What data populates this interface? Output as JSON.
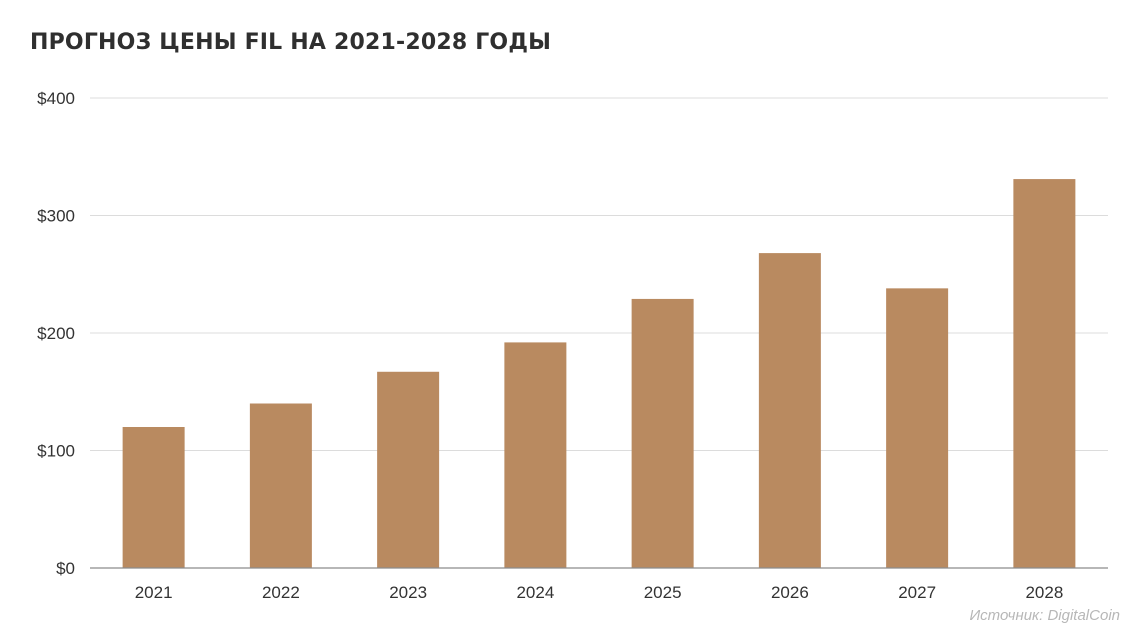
{
  "source_note": "Источник: DigitalCoin",
  "colors": {
    "bar": "#b98a60",
    "grid": "#dcdcdc",
    "axis": "#8c8c8c",
    "text": "#333333"
  },
  "chart_data": {
    "type": "bar",
    "title": "ПРОГНОЗ ЦЕНЫ FIL НА 2021-2028 ГОДЫ",
    "xlabel": "",
    "ylabel": "",
    "categories": [
      "2021",
      "2022",
      "2023",
      "2024",
      "2025",
      "2026",
      "2027",
      "2028"
    ],
    "values": [
      120,
      140,
      167,
      192,
      229,
      268,
      238,
      331
    ],
    "ylim": [
      0,
      400
    ],
    "yticks": [
      0,
      100,
      200,
      300,
      400
    ],
    "ytick_labels": [
      "$0",
      "$100",
      "$200",
      "$300",
      "$400"
    ],
    "grid": true,
    "legend": "none"
  }
}
